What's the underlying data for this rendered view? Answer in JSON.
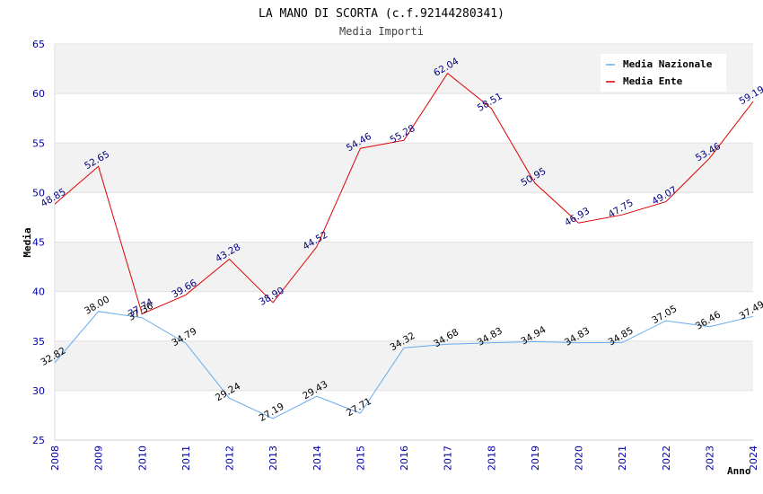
{
  "chart_data": {
    "type": "line",
    "title": "LA MANO DI SCORTA (c.f.92144280341)",
    "subtitle": "Media Importi",
    "xlabel": "Anno",
    "ylabel": "Media",
    "x": [
      "2008",
      "2009",
      "2010",
      "2011",
      "2012",
      "2013",
      "2014",
      "2015",
      "2016",
      "2017",
      "2018",
      "2019",
      "2020",
      "2021",
      "2022",
      "2023",
      "2024"
    ],
    "ylim": [
      25,
      65
    ],
    "yticks": [
      "25",
      "30",
      "35",
      "40",
      "45",
      "50",
      "55",
      "60",
      "65"
    ],
    "grid": "horizontal bands",
    "legend_position": "top-right",
    "series": [
      {
        "name": "Media Nazionale",
        "color": "#66aaee",
        "label_color": "#000000",
        "values": [
          32.82,
          38.0,
          37.36,
          34.79,
          29.24,
          27.19,
          29.43,
          27.71,
          34.32,
          34.68,
          34.83,
          34.94,
          34.83,
          34.85,
          37.05,
          36.46,
          37.49
        ],
        "labels": [
          "32.82",
          "38.00",
          "37.36",
          "34.79",
          "29.24",
          "27.19",
          "29.43",
          "27.71",
          "34.32",
          "34.68",
          "34.83",
          "34.94",
          "34.83",
          "34.85",
          "37.05",
          "36.46",
          "37.49"
        ]
      },
      {
        "name": "Media Ente",
        "color": "#dd0000",
        "label_color": "#000080",
        "values": [
          48.85,
          52.65,
          37.74,
          39.66,
          43.28,
          38.9,
          44.52,
          54.46,
          55.28,
          62.04,
          58.51,
          50.95,
          46.93,
          47.75,
          49.07,
          53.46,
          59.19
        ],
        "labels": [
          "48.85",
          "52.65",
          "37.74",
          "39.66",
          "43.28",
          "38.90",
          "44.52",
          "54.46",
          "55.28",
          "62.04",
          "58.51",
          "50.95",
          "46.93",
          "47.75",
          "49.07",
          "53.46",
          "59.19"
        ]
      }
    ]
  }
}
